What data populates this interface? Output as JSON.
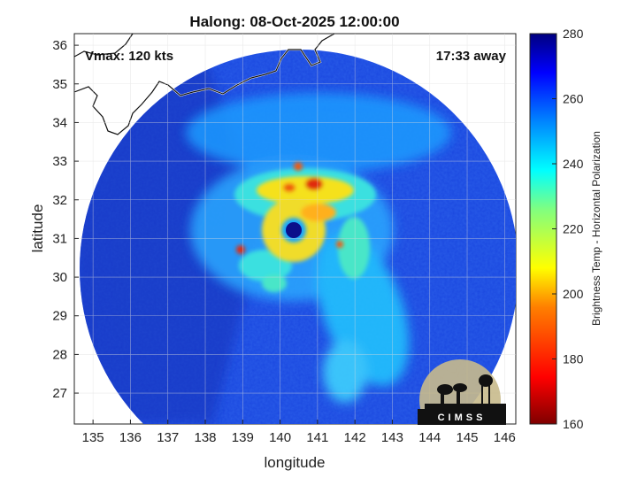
{
  "chart_data": {
    "type": "heatmap",
    "title": "Halong: 08-Oct-2025 12:00:00",
    "xlabel": "longitude",
    "ylabel": "latitude",
    "xlim": [
      134.5,
      146.3
    ],
    "ylim": [
      26.2,
      36.3
    ],
    "x_ticks": [
      135,
      136,
      137,
      138,
      139,
      140,
      141,
      142,
      143,
      144,
      145,
      146
    ],
    "y_ticks": [
      27,
      28,
      29,
      30,
      31,
      32,
      33,
      34,
      35,
      36
    ],
    "grid": true,
    "annotations": {
      "vmax": "Vmax: 120 kts",
      "away": "17:33 away"
    },
    "storm_center": {
      "lon": 140.2,
      "lat": 31.2
    },
    "colorbar": {
      "label": "Brightness Temp - Horizontal Polarization",
      "range": [
        160,
        280
      ],
      "ticks": [
        160,
        180,
        200,
        220,
        240,
        260,
        280
      ],
      "colormap": "jet"
    },
    "colors": {
      "background": "#1e4fe6",
      "band_cyan": "#22c8ff",
      "band_yellow": "#f5e11c",
      "band_red": "#e02a10",
      "eye": "#0b0f8a",
      "coastline": "#ffffff"
    }
  },
  "logo": {
    "text": "CIMSS"
  }
}
